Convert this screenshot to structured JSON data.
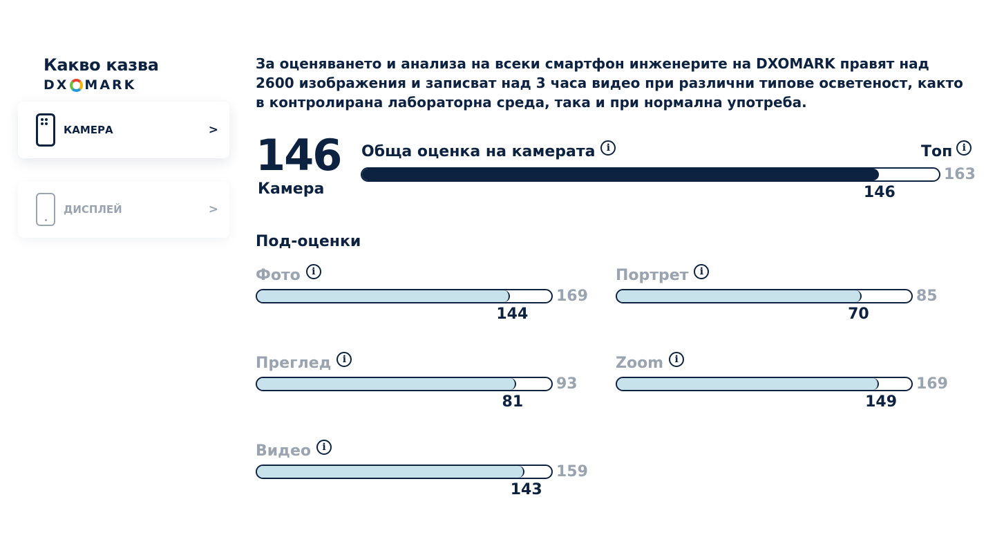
{
  "brand": {
    "title": "Какво казва",
    "logo_left": "DX",
    "logo_right": "MARK"
  },
  "tabs": [
    {
      "label": "КАМЕРА",
      "chevron": ">",
      "icon": "camera-phone-icon",
      "active": true
    },
    {
      "label": "ДИСПЛЕЙ",
      "chevron": ">",
      "icon": "display-phone-icon",
      "active": false
    }
  ],
  "intro": "За оценяването и анализа на всеки смартфон инженерите на DXOMARK правят над 2600 изображения и записват над 3 часа видео при различни типове осветеност, както в контролирана лабораторна среда, така и при нормална употреба.",
  "camera": {
    "score": "146",
    "label": "Камера",
    "overall_title": "Обща оценка на камерата",
    "top_label": "Топ",
    "overall_value": 146,
    "overall_max": 163
  },
  "info_glyph": "i",
  "subscores_heading": "Под-оценки",
  "subscores": [
    {
      "name": "Фото",
      "value": 144,
      "max": 169
    },
    {
      "name": "Портрет",
      "value": 70,
      "max": 85
    },
    {
      "name": "Преглед",
      "value": 81,
      "max": 93
    },
    {
      "name": "Zoom",
      "value": 149,
      "max": 169
    },
    {
      "name": "Видео",
      "value": 143,
      "max": 159
    }
  ],
  "colors": {
    "navy": "#0d2240",
    "gray": "#9aa4b0",
    "fill_light": "#c7e2ea"
  }
}
